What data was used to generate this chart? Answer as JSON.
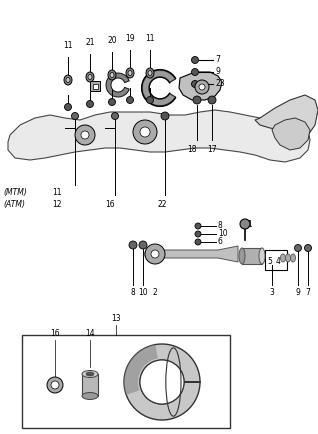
{
  "bg_color": "#ffffff",
  "line_color": "#000000",
  "text_color": "#000000",
  "fig_width": 3.18,
  "fig_height": 4.34,
  "dpi": 100
}
